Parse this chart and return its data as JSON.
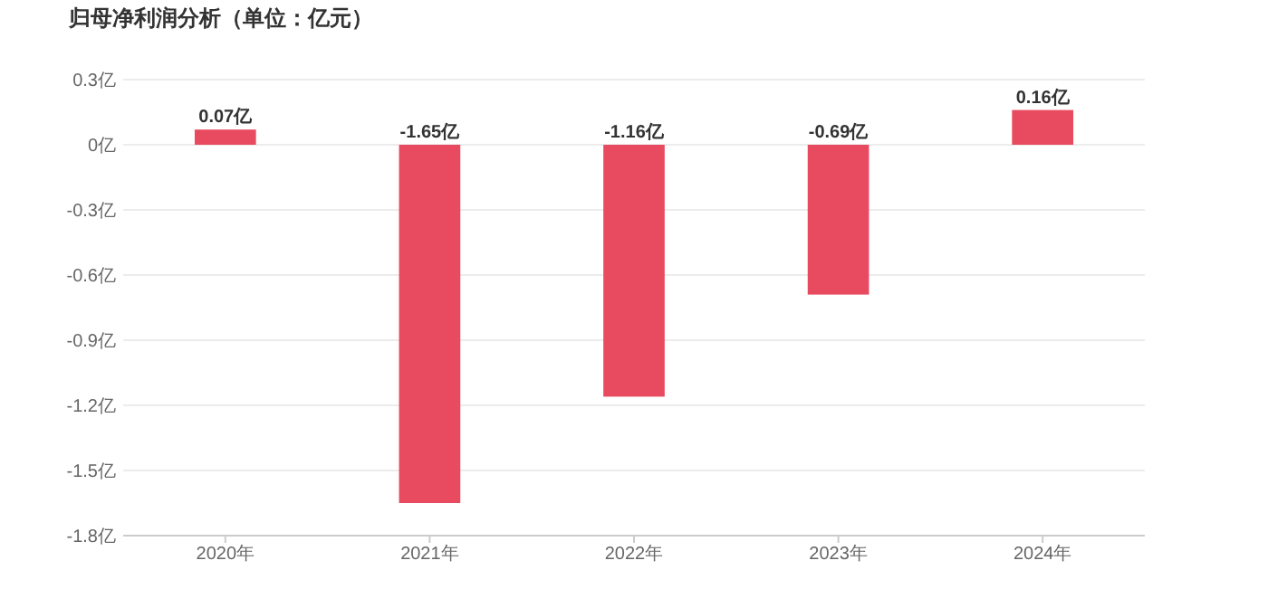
{
  "chart_data": {
    "type": "bar",
    "title": "归母净利润分析（单位：亿元）",
    "categories": [
      "2020年",
      "2021年",
      "2022年",
      "2023年",
      "2024年"
    ],
    "values": [
      0.07,
      -1.65,
      -1.16,
      -0.69,
      0.16
    ],
    "value_labels": [
      "0.07亿",
      "-1.65亿",
      "-1.16亿",
      "-0.69亿",
      "0.16亿"
    ],
    "color": "#e84b5f",
    "ylim": [
      -1.8,
      0.3
    ],
    "yticks": [
      {
        "value": 0.3,
        "label": "0.3亿"
      },
      {
        "value": 0,
        "label": "0亿"
      },
      {
        "value": -0.3,
        "label": "-0.3亿"
      },
      {
        "value": -0.6,
        "label": "-0.6亿"
      },
      {
        "value": -0.9,
        "label": "-0.9亿"
      },
      {
        "value": -1.2,
        "label": "-1.2亿"
      },
      {
        "value": -1.5,
        "label": "-1.5亿"
      },
      {
        "value": -1.8,
        "label": "-1.8亿"
      }
    ],
    "grid": "y"
  }
}
